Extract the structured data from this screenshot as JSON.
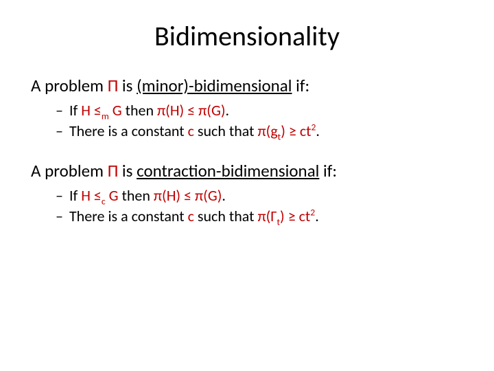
{
  "title": "Bidimensionality",
  "section1": {
    "lead_pre": "A problem ",
    "lead_sym": "Π",
    "lead_mid": " is ",
    "lead_term": "(minor)-bidimensional",
    "lead_post": " if:",
    "item1": {
      "dash": "–",
      "t1": " If ",
      "v1": "H",
      "t2": " ",
      "rel": "≤",
      "sub": "m",
      "t3": " ",
      "v2": "G",
      "t4": " then ",
      "lhs": "π(H)",
      "rel2": " ≤ ",
      "rhs": "π(G)",
      "end": "."
    },
    "item2": {
      "dash": "–",
      "t1": " There is a constant ",
      "c": "c",
      "t2": " such that ",
      "lhs": "π(g",
      "sub": "t",
      "lhs2": ")",
      "rel": " ≥ ",
      "rhs1": "ct",
      "sup": "2",
      "end": "."
    }
  },
  "section2": {
    "lead_pre": "A problem ",
    "lead_sym": "Π",
    "lead_mid": " is ",
    "lead_term": "contraction-bidimensional",
    "lead_post": " if:",
    "item1": {
      "dash": "–",
      "t1": " If ",
      "v1": "H",
      "t2": " ",
      "rel": "≤",
      "sub": "c",
      "t3": " ",
      "v2": "G",
      "t4": " then ",
      "lhs": "π(H)",
      "rel2": " ≤ ",
      "rhs": "π(G)",
      "end": "."
    },
    "item2": {
      "dash": "–",
      "t1": " There is a constant ",
      "c": "c",
      "t2": " such that ",
      "lhs": "π(Γ",
      "sub": "t",
      "lhs2": ")",
      "rel": " ≥ ",
      "rhs1": "ct",
      "sup": "2",
      "end": "."
    }
  },
  "colors": {
    "text": "#000000",
    "accent": "#c00000",
    "background": "#ffffff"
  },
  "fonts": {
    "title_size_pt": 40,
    "body_size_pt": 25,
    "sub_size_pt": 22
  }
}
